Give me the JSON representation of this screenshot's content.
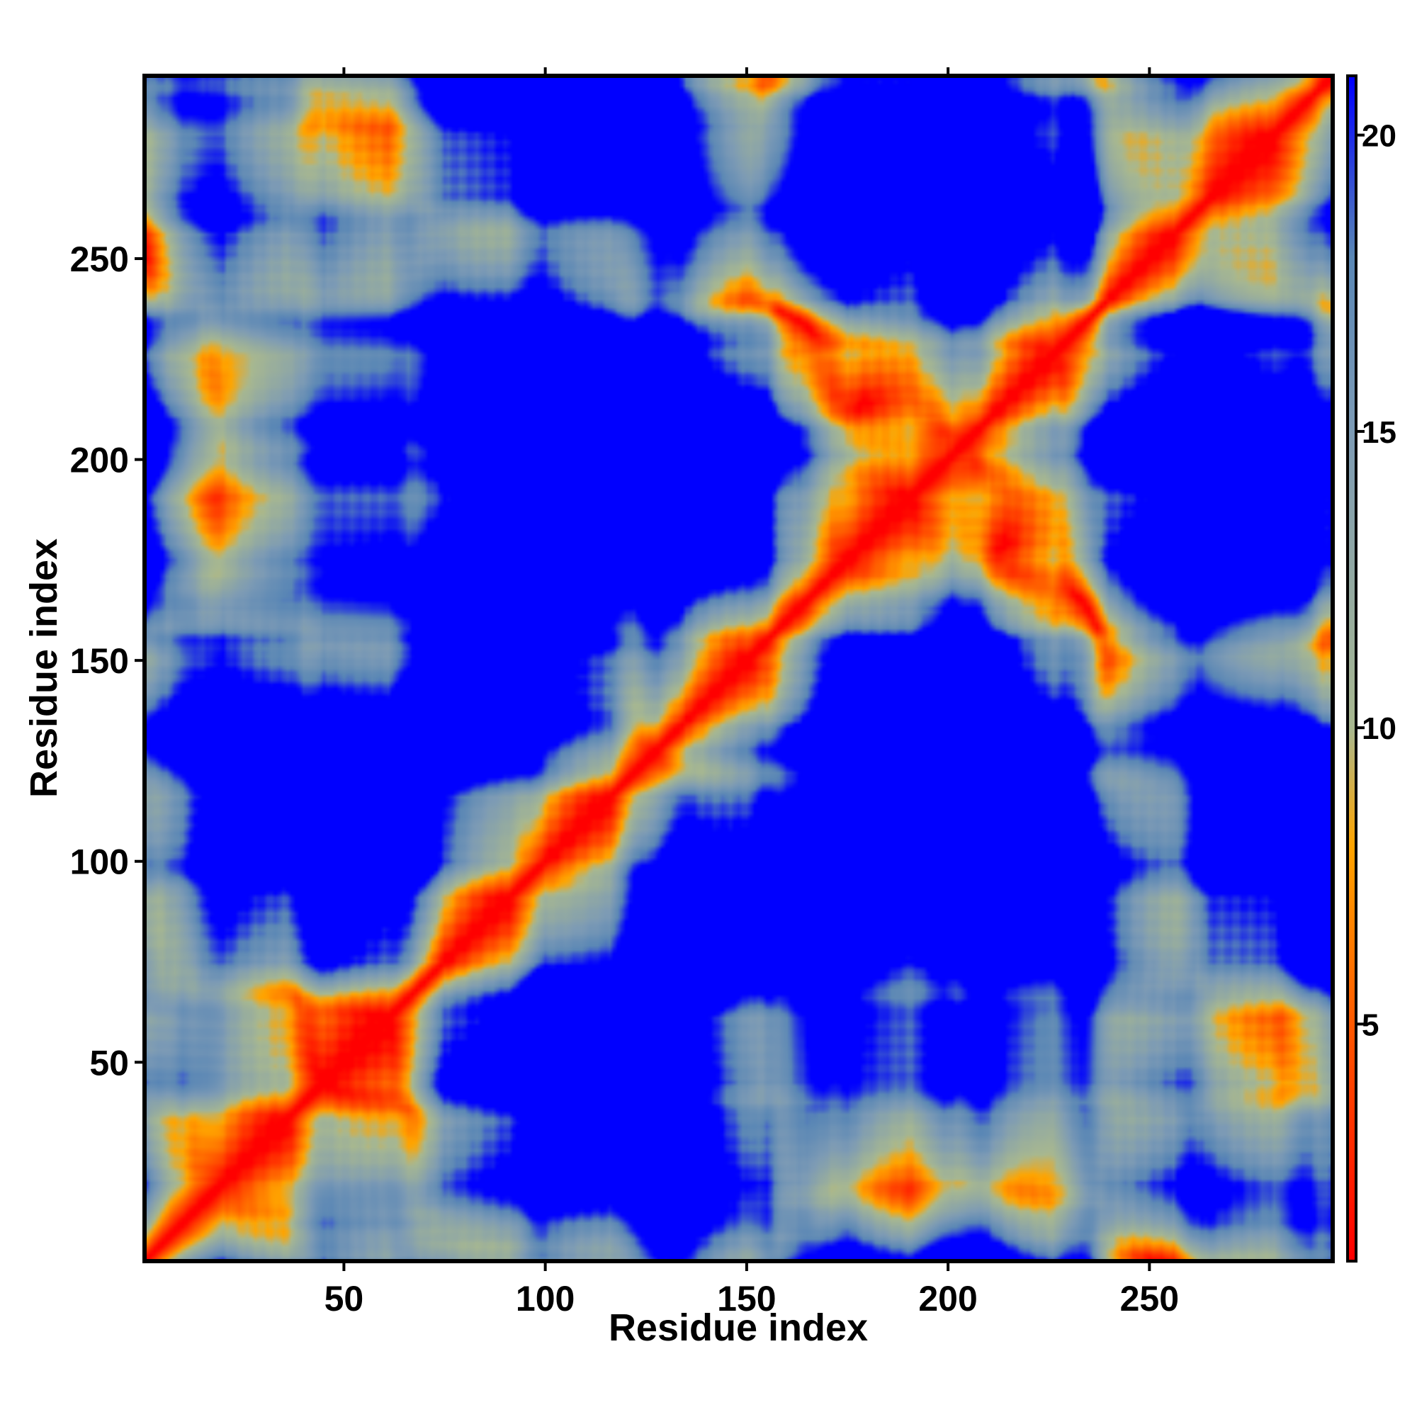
{
  "chart_data": {
    "type": "heatmap",
    "description_of_axes": "",
    "xlabel": "Residue index",
    "ylabel": "Residue index",
    "n_residues": 295,
    "xlim": [
      1,
      295
    ],
    "ylim": [
      1,
      295
    ],
    "x_ticks": [
      50,
      100,
      150,
      200,
      250
    ],
    "y_ticks": [
      50,
      100,
      150,
      200,
      250
    ],
    "colorbar": {
      "ticks": [
        5,
        10,
        15,
        20
      ],
      "range": [
        1,
        21
      ],
      "colors": [
        {
          "value": 1,
          "color": "#ff0000"
        },
        {
          "value": 5,
          "color": "#ff5a00"
        },
        {
          "value": 8,
          "color": "#ffa500"
        },
        {
          "value": 10,
          "color": "#a8b890"
        },
        {
          "value": 15,
          "color": "#7d9bb5"
        },
        {
          "value": 18,
          "color": "#5a87b5"
        },
        {
          "value": 21,
          "color": "#0000ff"
        }
      ],
      "far_color": "#0000ff"
    },
    "layout_hint": {
      "legend": "right colorbar",
      "grid": false
    }
  },
  "colors": {
    "background": "#ffffff",
    "frame": "#000000",
    "contact": "#ff0000",
    "near": "#ffa500",
    "mid": "#5a87b5",
    "far": "#0000ff"
  }
}
